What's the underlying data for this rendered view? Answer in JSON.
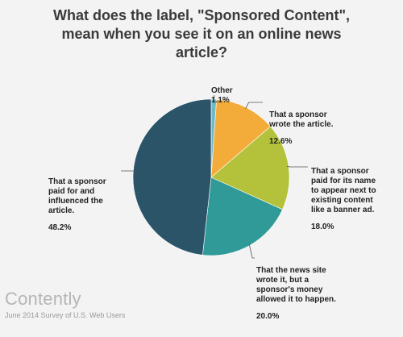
{
  "chart_data": {
    "type": "pie",
    "title": "What does the label, \"Sponsored Content\",\nmean when you see it on an online news\narticle?",
    "slices": [
      {
        "label": "Other",
        "value": 1.1,
        "pct_label": "1.1%",
        "color": "#6fb8c8"
      },
      {
        "label": "That a sponsor\nwrote the article.",
        "value": 12.6,
        "pct_label": "12.6%",
        "color": "#f3ac3a"
      },
      {
        "label": "That a sponsor\npaid for its name\nto appear next to\nexisting content\nlike a banner ad.",
        "value": 18.0,
        "pct_label": "18.0%",
        "color": "#b3c23a"
      },
      {
        "label": "That the news site\nwrote it, but a\nsponsor's money\nallowed it to happen.",
        "value": 20.0,
        "pct_label": "20.0%",
        "color": "#2f9a98"
      },
      {
        "label": "That a sponsor\npaid for and\ninfluenced the\narticle.",
        "value": 48.2,
        "pct_label": "48.2%",
        "color": "#2b5468"
      }
    ]
  },
  "footer": {
    "brand": "Contently",
    "source": "June 2014 Survey of U.S. Web Users"
  }
}
